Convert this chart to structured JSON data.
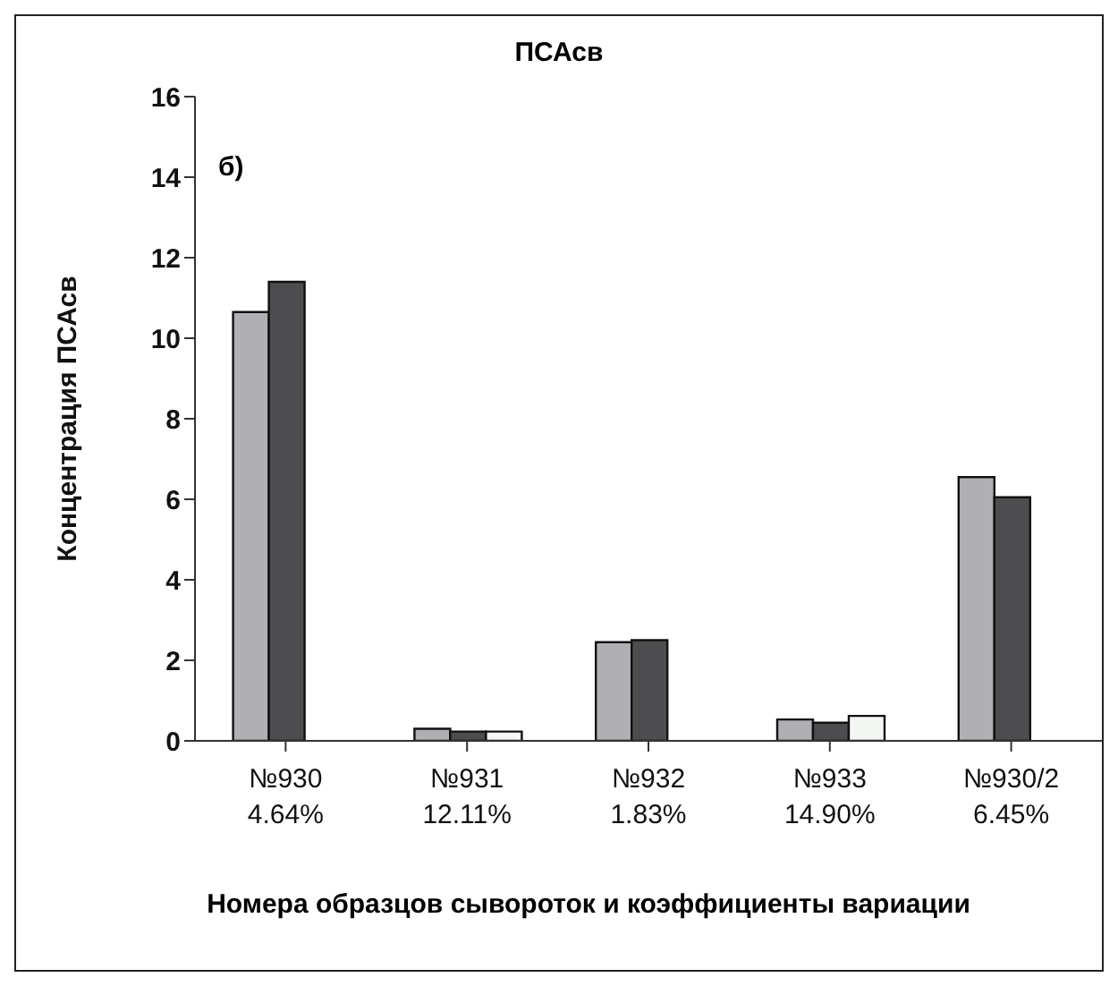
{
  "chart_data": {
    "type": "bar",
    "title": "ПСАсв",
    "xlabel": "Номера образцов сывороток и коэффициенты вариации",
    "ylabel": "Концентрация ПСАсв",
    "categories": [
      "№930\n4.64%",
      "№931\n12.11%",
      "№932\n1.83%",
      "№933\n14.90%",
      "№930/2\n6.45%"
    ],
    "series": [
      {
        "color": "#b0b0b4",
        "values": [
          10.65,
          0.3,
          2.45,
          0.53,
          6.55
        ]
      },
      {
        "color": "#4d4d4f",
        "values": [
          11.4,
          0.23,
          2.5,
          0.45,
          6.05
        ]
      },
      {
        "color": "#f4f6f4",
        "values": [
          null,
          0.23,
          null,
          0.62,
          null
        ]
      }
    ],
    "ylim": [
      0,
      16
    ],
    "yticks": [
      0,
      2,
      4,
      6,
      8,
      10,
      12,
      14,
      16
    ],
    "grid": false,
    "legend": false,
    "annotations": [
      "б)"
    ]
  }
}
